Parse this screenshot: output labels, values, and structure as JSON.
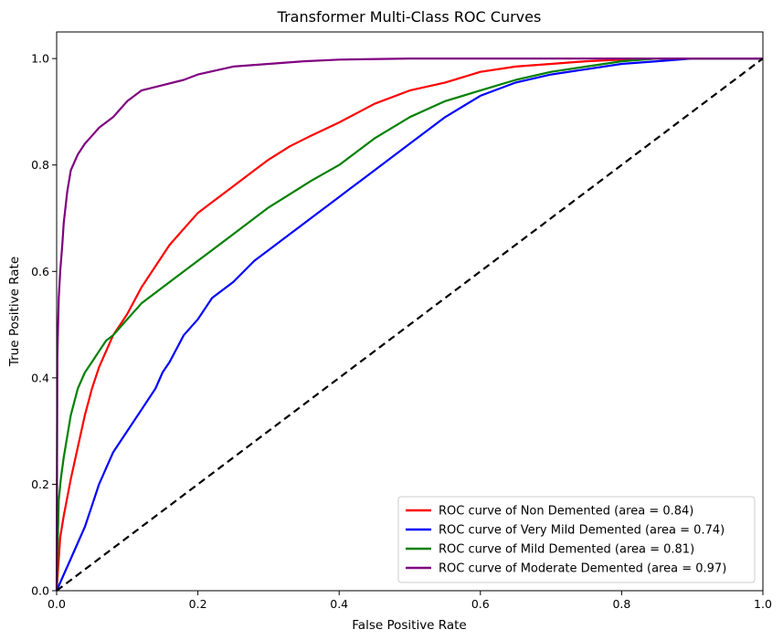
{
  "chart_data": {
    "type": "line",
    "title": "Transformer Multi-Class ROC Curves",
    "xlabel": "False Positive Rate",
    "ylabel": "True Positive Rate",
    "xlim": [
      0.0,
      1.0
    ],
    "ylim": [
      0.0,
      1.05
    ],
    "x_ticks": [
      "0.0",
      "0.2",
      "0.4",
      "0.6",
      "0.8",
      "1.0"
    ],
    "y_ticks": [
      "0.0",
      "0.2",
      "0.4",
      "0.6",
      "0.8",
      "1.0"
    ],
    "grid": false,
    "legend_position": "lower-right",
    "series": [
      {
        "name": "ROC curve of Non Demented (area = 0.84)",
        "color": "#ff0000",
        "x": [
          0,
          0.005,
          0.01,
          0.02,
          0.03,
          0.04,
          0.05,
          0.06,
          0.07,
          0.08,
          0.09,
          0.1,
          0.12,
          0.14,
          0.16,
          0.18,
          0.2,
          0.22,
          0.25,
          0.28,
          0.3,
          0.33,
          0.36,
          0.4,
          0.45,
          0.5,
          0.55,
          0.6,
          0.65,
          0.7,
          0.75,
          0.8,
          0.85,
          0.9,
          1.0
        ],
        "y": [
          0,
          0.1,
          0.14,
          0.21,
          0.27,
          0.33,
          0.38,
          0.42,
          0.45,
          0.48,
          0.5,
          0.52,
          0.57,
          0.61,
          0.65,
          0.68,
          0.71,
          0.73,
          0.76,
          0.79,
          0.81,
          0.835,
          0.855,
          0.88,
          0.915,
          0.94,
          0.955,
          0.975,
          0.985,
          0.99,
          0.995,
          0.998,
          1.0,
          1.0,
          1.0
        ]
      },
      {
        "name": "ROC curve of Very Mild Demented (area = 0.74)",
        "color": "#0000ff",
        "x": [
          0,
          0.01,
          0.02,
          0.03,
          0.04,
          0.05,
          0.06,
          0.07,
          0.08,
          0.1,
          0.12,
          0.14,
          0.15,
          0.16,
          0.18,
          0.2,
          0.22,
          0.25,
          0.28,
          0.3,
          0.33,
          0.36,
          0.4,
          0.43,
          0.46,
          0.5,
          0.55,
          0.6,
          0.65,
          0.7,
          0.75,
          0.8,
          0.85,
          0.9,
          1.0
        ],
        "y": [
          0,
          0.03,
          0.06,
          0.09,
          0.12,
          0.16,
          0.2,
          0.23,
          0.26,
          0.3,
          0.34,
          0.38,
          0.41,
          0.43,
          0.48,
          0.51,
          0.55,
          0.58,
          0.62,
          0.64,
          0.67,
          0.7,
          0.74,
          0.77,
          0.8,
          0.84,
          0.89,
          0.93,
          0.955,
          0.97,
          0.98,
          0.99,
          0.995,
          1.0,
          1.0
        ]
      },
      {
        "name": "ROC curve of Mild Demented (area = 0.81)",
        "color": "#008000",
        "x": [
          0,
          0.003,
          0.006,
          0.01,
          0.015,
          0.02,
          0.03,
          0.04,
          0.05,
          0.06,
          0.07,
          0.08,
          0.1,
          0.12,
          0.14,
          0.16,
          0.18,
          0.2,
          0.22,
          0.25,
          0.28,
          0.3,
          0.33,
          0.36,
          0.4,
          0.45,
          0.5,
          0.55,
          0.6,
          0.65,
          0.7,
          0.75,
          0.8,
          0.85,
          1.0
        ],
        "y": [
          0,
          0.17,
          0.21,
          0.25,
          0.29,
          0.33,
          0.38,
          0.41,
          0.43,
          0.45,
          0.47,
          0.48,
          0.51,
          0.54,
          0.56,
          0.58,
          0.6,
          0.62,
          0.64,
          0.67,
          0.7,
          0.72,
          0.745,
          0.77,
          0.8,
          0.85,
          0.89,
          0.92,
          0.94,
          0.96,
          0.975,
          0.985,
          0.995,
          1.0,
          1.0
        ]
      },
      {
        "name": "ROC curve of Moderate Demented (area = 0.97)",
        "color": "#800080",
        "x": [
          0,
          0.001,
          0.003,
          0.005,
          0.008,
          0.01,
          0.015,
          0.02,
          0.03,
          0.04,
          0.05,
          0.06,
          0.08,
          0.1,
          0.12,
          0.15,
          0.18,
          0.2,
          0.25,
          0.3,
          0.35,
          0.4,
          0.5,
          0.6,
          0.7,
          1.0
        ],
        "y": [
          0,
          0.44,
          0.55,
          0.6,
          0.65,
          0.69,
          0.75,
          0.79,
          0.82,
          0.84,
          0.855,
          0.87,
          0.89,
          0.92,
          0.94,
          0.95,
          0.96,
          0.97,
          0.985,
          0.99,
          0.995,
          0.998,
          1.0,
          1.0,
          1.0,
          1.0
        ]
      }
    ],
    "reference_line": {
      "x": [
        0,
        1
      ],
      "y": [
        0,
        1
      ],
      "color": "#000000",
      "style": "dashed"
    }
  }
}
